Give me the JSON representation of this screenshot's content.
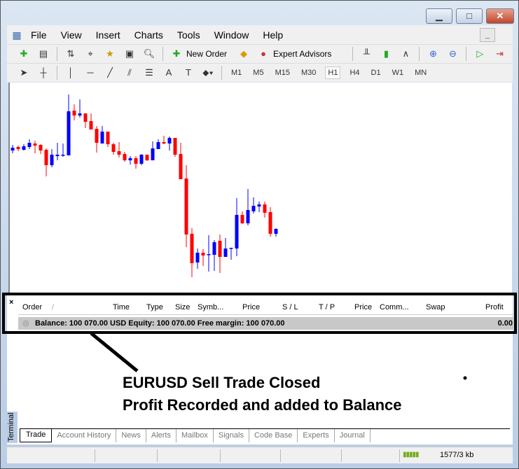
{
  "menu": [
    "File",
    "View",
    "Insert",
    "Charts",
    "Tools",
    "Window",
    "Help"
  ],
  "toolbar": {
    "new_order": "New Order",
    "expert_advisors": "Expert Advisors"
  },
  "timeframes": [
    "M1",
    "M5",
    "M15",
    "M30",
    "H1",
    "H4",
    "D1",
    "W1",
    "MN"
  ],
  "active_timeframe": "H1",
  "colors": {
    "bull": "#0000ff",
    "bear": "#ff0000"
  },
  "candles": [
    [
      190,
      198,
      186,
      194
    ],
    [
      195,
      197,
      189,
      192
    ],
    [
      191,
      199,
      190,
      196
    ],
    [
      195,
      206,
      192,
      201
    ],
    [
      200,
      204,
      186,
      197
    ],
    [
      198,
      199,
      185,
      190
    ],
    [
      191,
      193,
      153,
      169
    ],
    [
      169,
      192,
      166,
      184
    ],
    [
      182,
      201,
      176,
      184
    ],
    [
      183,
      200,
      181,
      184
    ],
    [
      183,
      270,
      183,
      246
    ],
    [
      247,
      256,
      233,
      240
    ],
    [
      240,
      263,
      237,
      243
    ],
    [
      243,
      243,
      222,
      231
    ],
    [
      232,
      243,
      220,
      220
    ],
    [
      221,
      225,
      187,
      201
    ],
    [
      200,
      225,
      200,
      217
    ],
    [
      217,
      217,
      195,
      199
    ],
    [
      199,
      201,
      184,
      188
    ],
    [
      189,
      202,
      180,
      184
    ],
    [
      185,
      188,
      174,
      176
    ],
    [
      176,
      182,
      170,
      179
    ],
    [
      179,
      182,
      164,
      171
    ],
    [
      171,
      185,
      169,
      184
    ],
    [
      184,
      184,
      175,
      176
    ],
    [
      176,
      203,
      176,
      193
    ],
    [
      192,
      206,
      192,
      202
    ],
    [
      202,
      211,
      199,
      200
    ],
    [
      200,
      210,
      190,
      208
    ],
    [
      208,
      208,
      181,
      184
    ],
    [
      185,
      201,
      149,
      149
    ],
    [
      150,
      169,
      52,
      70
    ],
    [
      71,
      79,
      9,
      29
    ],
    [
      30,
      50,
      21,
      44
    ],
    [
      44,
      49,
      25,
      40
    ],
    [
      41,
      69,
      17,
      42
    ],
    [
      41,
      62,
      18,
      59
    ],
    [
      61,
      70,
      15,
      38
    ],
    [
      38,
      65,
      38,
      50
    ],
    [
      50,
      51,
      34,
      51
    ],
    [
      50,
      122,
      39,
      98
    ],
    [
      98,
      103,
      85,
      86
    ],
    [
      86,
      135,
      83,
      105
    ],
    [
      103,
      123,
      100,
      111
    ],
    [
      110,
      117,
      102,
      113
    ],
    [
      113,
      117,
      94,
      101
    ],
    [
      102,
      109,
      67,
      71
    ],
    [
      71,
      79,
      67,
      78
    ]
  ],
  "terminal": {
    "close": "×",
    "columns": [
      "Order",
      "/",
      "Time",
      "Type",
      "Size",
      "Symb...",
      "Price",
      "S / L",
      "T / P",
      "Price",
      "Comm...",
      "Swap",
      "Profit"
    ],
    "balance_row": "Balance: 100 070.00 USD  Equity: 100 070.00  Free margin: 100 070.00",
    "profit": "0.00",
    "label": "Terminal",
    "tabs": [
      "Trade",
      "Account History",
      "News",
      "Alerts",
      "Mailbox",
      "Signals",
      "Code Base",
      "Experts",
      "Journal"
    ]
  },
  "annotation": {
    "line1": "EURUSD Sell Trade Closed",
    "line2": "Profit Recorded and added to Balance"
  },
  "status": {
    "traffic": "1577/3 kb"
  }
}
